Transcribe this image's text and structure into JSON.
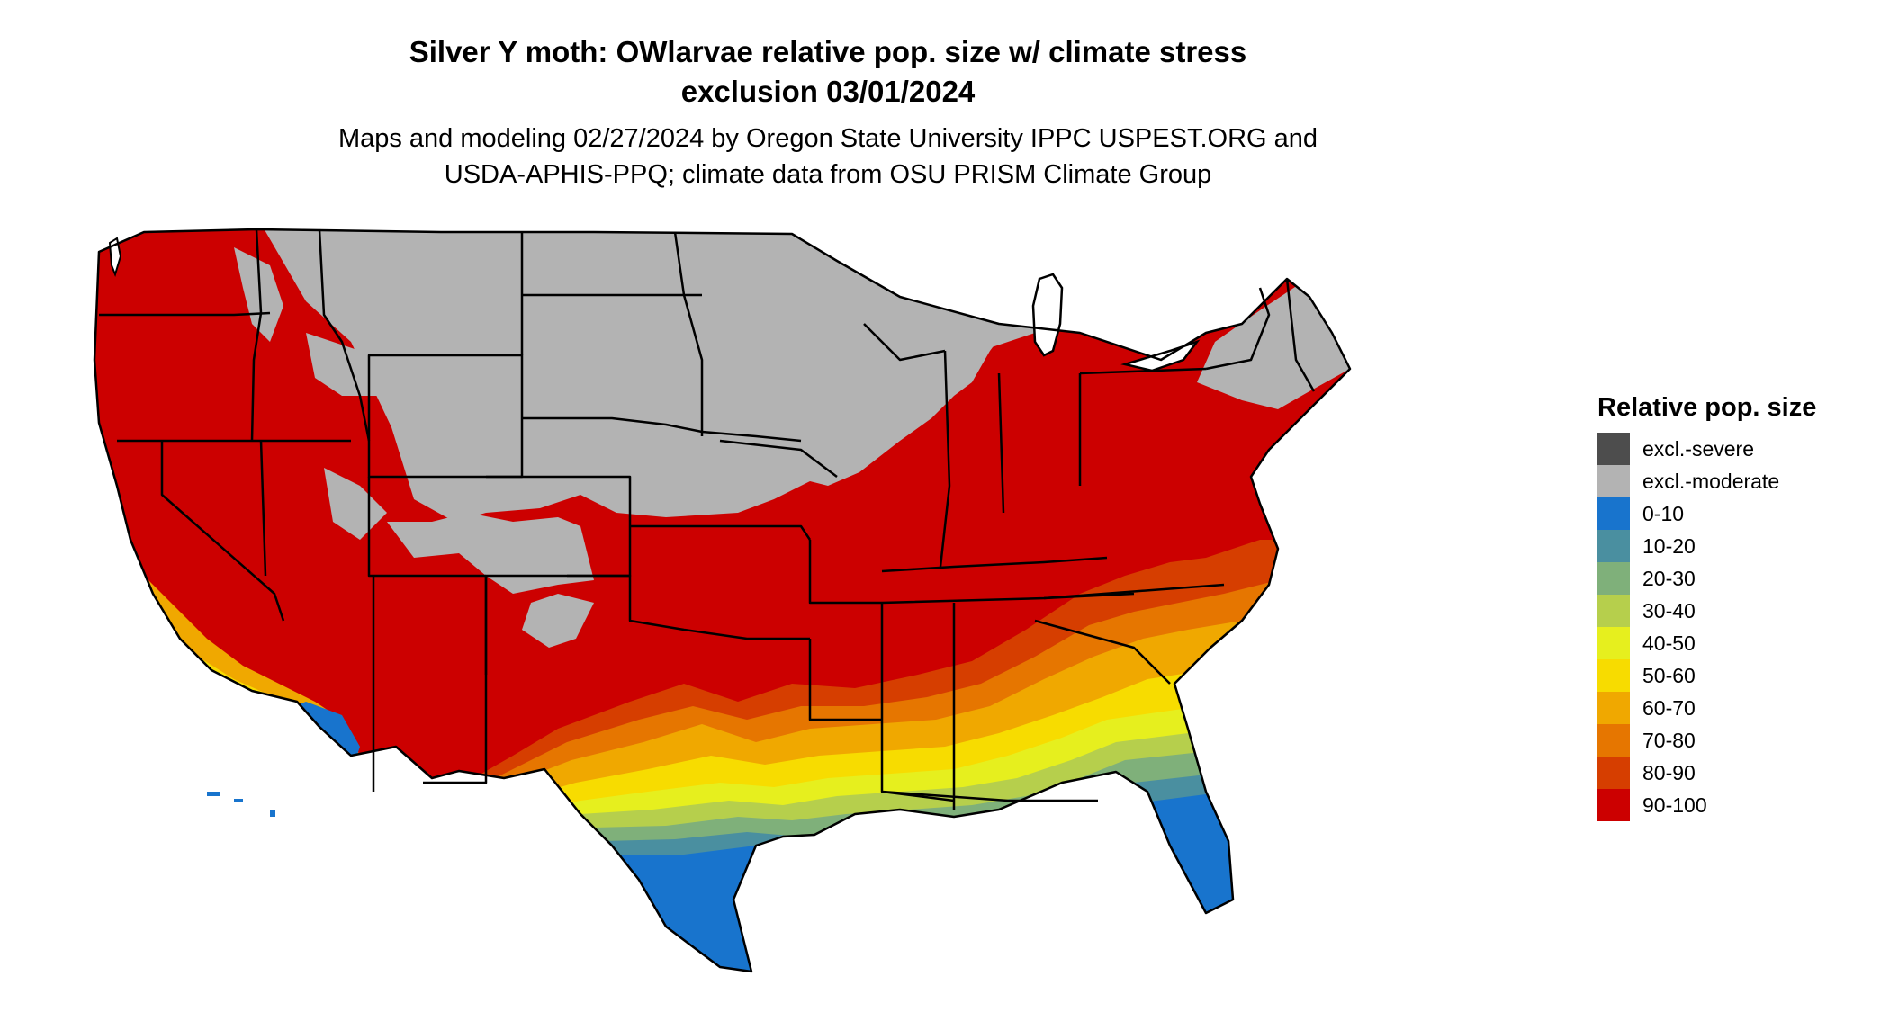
{
  "title_line1": "Silver Y moth: OWlarvae relative pop. size w/ climate stress",
  "title_line2": "exclusion 03/01/2024",
  "subtitle_line1": "Maps and modeling 02/27/2024 by Oregon State University IPPC USPEST.ORG and",
  "subtitle_line2": "USDA-APHIS-PPQ; climate data from OSU PRISM Climate Group",
  "legend": {
    "title": "Relative pop. size",
    "items": [
      {
        "label": "excl.-severe",
        "color": "#4d4d4d"
      },
      {
        "label": "excl.-moderate",
        "color": "#b3b3b3"
      },
      {
        "label": "0-10",
        "color": "#1874cd"
      },
      {
        "label": "10-20",
        "color": "#4a8fa0"
      },
      {
        "label": "20-30",
        "color": "#7fb07a"
      },
      {
        "label": "30-40",
        "color": "#b6cf4c"
      },
      {
        "label": "40-50",
        "color": "#e6ef1e"
      },
      {
        "label": "50-60",
        "color": "#f7dc00"
      },
      {
        "label": "60-70",
        "color": "#f0a800"
      },
      {
        "label": "70-80",
        "color": "#e67600"
      },
      {
        "label": "80-90",
        "color": "#d63e00"
      },
      {
        "label": "90-100",
        "color": "#cc0000"
      }
    ]
  },
  "colors": {
    "background": "#ffffff",
    "border": "#000000",
    "water": "#ffffff"
  }
}
